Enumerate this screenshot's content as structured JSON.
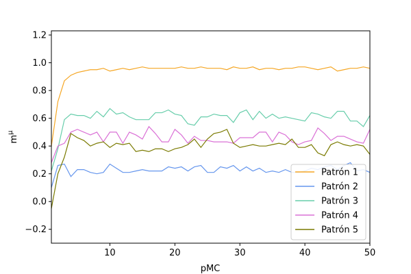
{
  "chart_data": {
    "type": "line",
    "xlabel": "pMC",
    "ylabel": "m",
    "ylabel_sup": "μ",
    "xlim": [
      1,
      50
    ],
    "ylim": [
      -0.3,
      1.23
    ],
    "xticks": [
      10,
      20,
      30,
      40,
      50
    ],
    "yticks": [
      -0.2,
      0.0,
      0.2,
      0.4,
      0.6,
      0.8,
      1.0,
      1.2
    ],
    "ytick_labels": [
      "−0.2",
      "0.0",
      "0.2",
      "0.4",
      "0.6",
      "0.8",
      "1.0",
      "1.2"
    ],
    "grid": false,
    "legend_position": "lower-right",
    "x": [
      1,
      2,
      3,
      4,
      5,
      6,
      7,
      8,
      9,
      10,
      11,
      12,
      13,
      14,
      15,
      16,
      17,
      18,
      19,
      20,
      21,
      22,
      23,
      24,
      25,
      26,
      27,
      28,
      29,
      30,
      31,
      32,
      33,
      34,
      35,
      36,
      37,
      38,
      39,
      40,
      41,
      42,
      43,
      44,
      45,
      46,
      47,
      48,
      49,
      50
    ],
    "series": [
      {
        "name": "Patrón 1",
        "color": "#f5a623",
        "values": [
          0.4,
          0.72,
          0.87,
          0.91,
          0.93,
          0.94,
          0.95,
          0.95,
          0.96,
          0.94,
          0.95,
          0.96,
          0.95,
          0.96,
          0.97,
          0.96,
          0.96,
          0.96,
          0.96,
          0.96,
          0.97,
          0.96,
          0.96,
          0.97,
          0.96,
          0.96,
          0.96,
          0.95,
          0.97,
          0.96,
          0.96,
          0.97,
          0.95,
          0.96,
          0.96,
          0.95,
          0.96,
          0.96,
          0.97,
          0.97,
          0.96,
          0.95,
          0.96,
          0.97,
          0.94,
          0.95,
          0.96,
          0.96,
          0.97,
          0.96
        ]
      },
      {
        "name": "Patrón 2",
        "color": "#6495ed",
        "values": [
          0.1,
          0.26,
          0.27,
          0.18,
          0.23,
          0.23,
          0.21,
          0.2,
          0.21,
          0.27,
          0.24,
          0.21,
          0.21,
          0.22,
          0.23,
          0.22,
          0.22,
          0.22,
          0.25,
          0.24,
          0.25,
          0.22,
          0.25,
          0.26,
          0.21,
          0.21,
          0.25,
          0.24,
          0.26,
          0.22,
          0.25,
          0.22,
          0.24,
          0.21,
          0.22,
          0.21,
          0.23,
          0.21,
          0.21,
          0.22,
          0.24,
          0.23,
          0.25,
          0.26,
          0.23,
          0.26,
          0.28,
          0.22,
          0.23,
          0.21
        ]
      },
      {
        "name": "Patrón 3",
        "color": "#66cdaa",
        "values": [
          0.22,
          0.38,
          0.59,
          0.63,
          0.62,
          0.62,
          0.6,
          0.65,
          0.61,
          0.67,
          0.63,
          0.64,
          0.61,
          0.59,
          0.59,
          0.59,
          0.64,
          0.64,
          0.66,
          0.63,
          0.62,
          0.56,
          0.55,
          0.61,
          0.61,
          0.63,
          0.62,
          0.62,
          0.57,
          0.64,
          0.66,
          0.59,
          0.65,
          0.6,
          0.63,
          0.6,
          0.61,
          0.6,
          0.59,
          0.58,
          0.64,
          0.63,
          0.61,
          0.6,
          0.65,
          0.65,
          0.58,
          0.58,
          0.54,
          0.62
        ]
      },
      {
        "name": "Patrón 4",
        "color": "#da70d6",
        "values": [
          0.28,
          0.4,
          0.42,
          0.5,
          0.52,
          0.5,
          0.48,
          0.5,
          0.43,
          0.5,
          0.5,
          0.42,
          0.5,
          0.48,
          0.45,
          0.54,
          0.49,
          0.43,
          0.43,
          0.52,
          0.48,
          0.42,
          0.47,
          0.44,
          0.44,
          0.43,
          0.43,
          0.43,
          0.42,
          0.46,
          0.46,
          0.46,
          0.5,
          0.5,
          0.43,
          0.5,
          0.48,
          0.43,
          0.41,
          0.43,
          0.44,
          0.53,
          0.49,
          0.44,
          0.47,
          0.47,
          0.45,
          0.43,
          0.42,
          0.52
        ]
      },
      {
        "name": "Patrón 5",
        "color": "#7a7a00",
        "values": [
          -0.05,
          0.2,
          0.32,
          0.49,
          0.46,
          0.44,
          0.4,
          0.42,
          0.43,
          0.39,
          0.42,
          0.41,
          0.42,
          0.36,
          0.37,
          0.36,
          0.38,
          0.38,
          0.36,
          0.38,
          0.39,
          0.41,
          0.45,
          0.39,
          0.45,
          0.49,
          0.5,
          0.52,
          0.42,
          0.39,
          0.4,
          0.41,
          0.4,
          0.4,
          0.41,
          0.42,
          0.41,
          0.45,
          0.39,
          0.39,
          0.41,
          0.35,
          0.33,
          0.41,
          0.43,
          0.41,
          0.4,
          0.41,
          0.4,
          0.34
        ]
      }
    ]
  }
}
